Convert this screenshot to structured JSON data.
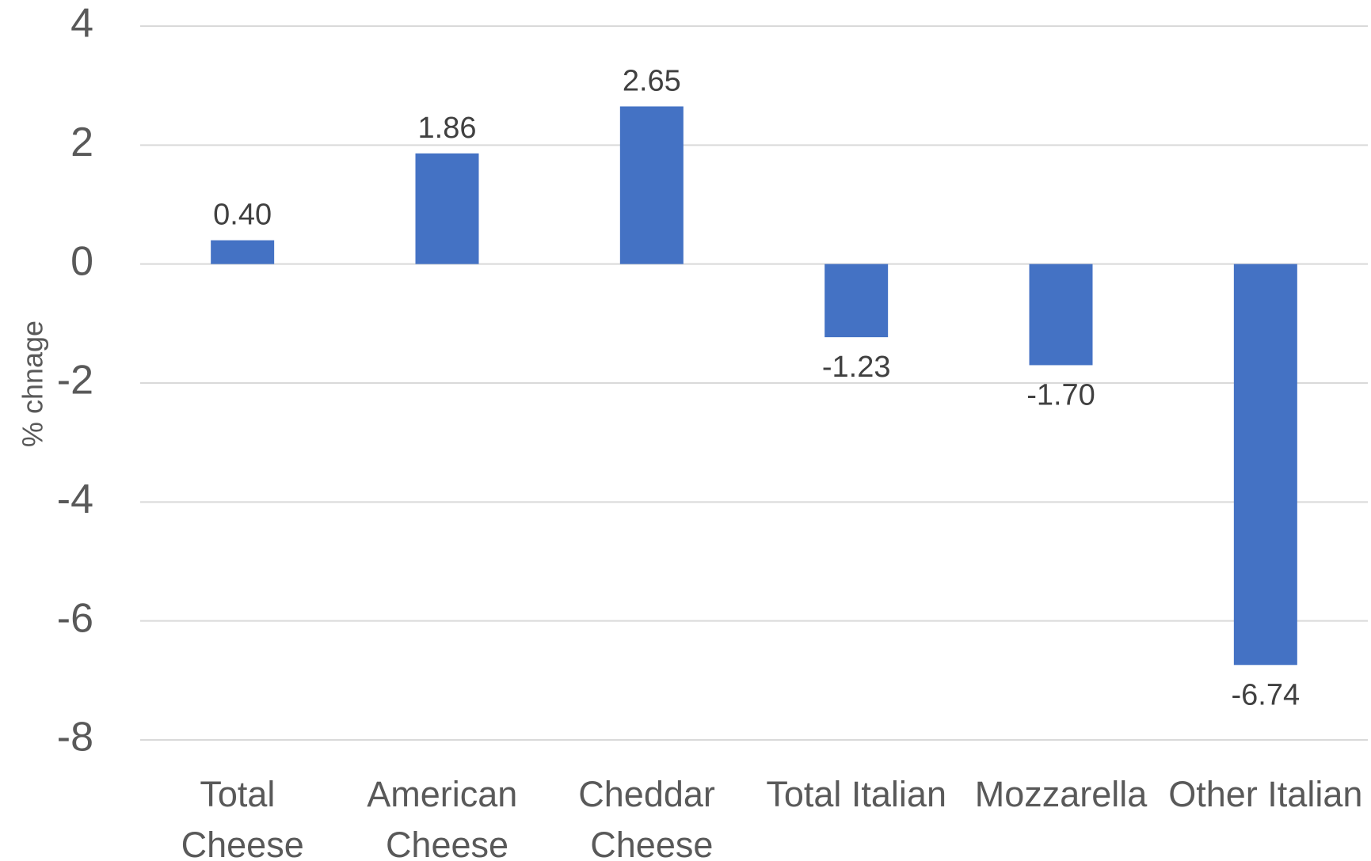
{
  "chart_data": {
    "type": "bar",
    "y_axis_label": "% chnage",
    "categories": [
      "Total Cheese",
      "American Cheese",
      "Cheddar Cheese",
      "Total Italian",
      "Mozzarella",
      "Other Italian"
    ],
    "values": [
      0.4,
      1.86,
      2.65,
      -1.23,
      -1.7,
      -6.74
    ],
    "value_labels": [
      "0.40",
      "1.86",
      "2.65",
      "-1.23",
      "-1.70",
      "-6.74"
    ],
    "color": "#4472c4",
    "ylim": [
      -8,
      4
    ],
    "yticks": [
      4,
      2,
      0,
      -2,
      -4,
      -6,
      -8
    ],
    "grid": true
  }
}
